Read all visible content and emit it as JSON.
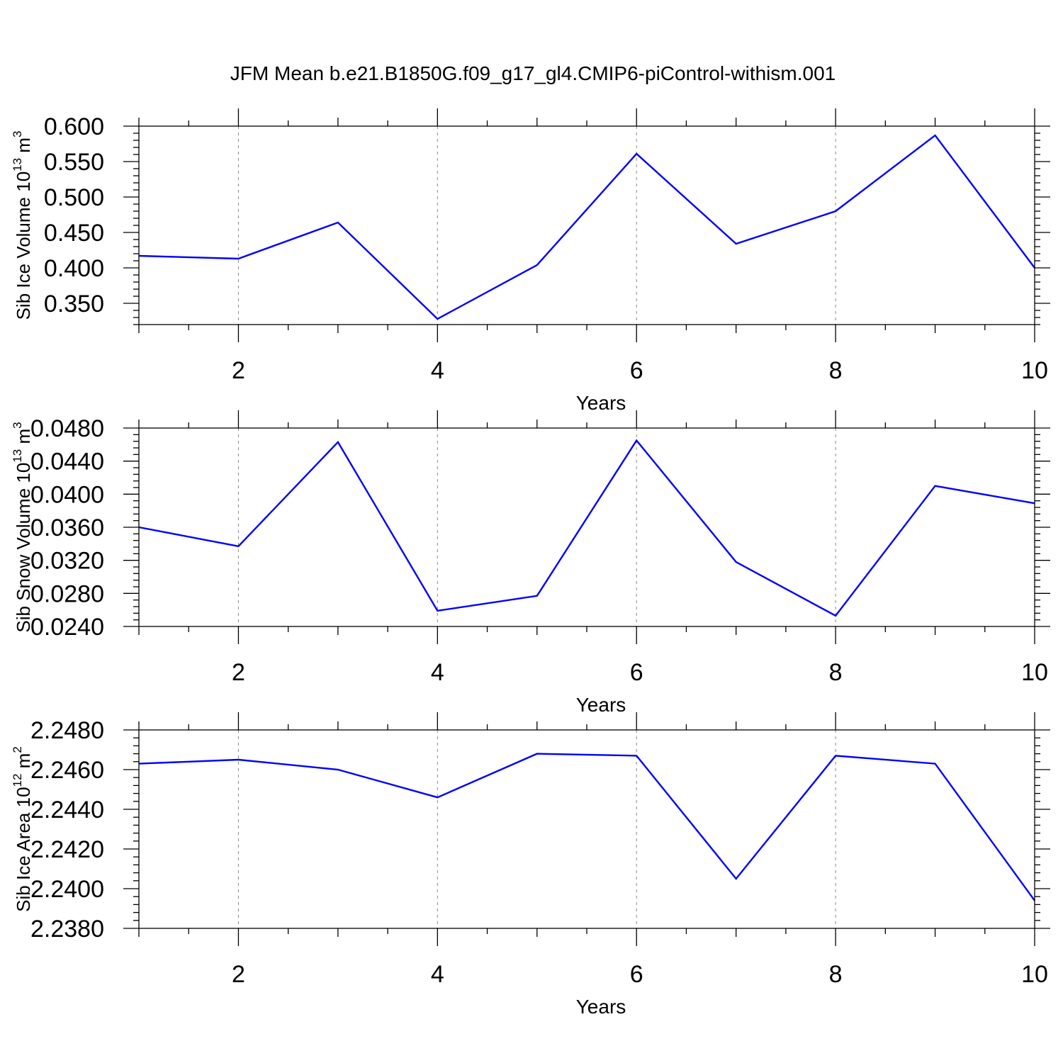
{
  "title": "JFM Mean b.e21.B1850G.f09_g17_gl4.CMIP6-piControl-withism.001",
  "colors": {
    "line": "#0000ff",
    "axis": "#000000",
    "grid": "#888888"
  },
  "chart_data": [
    {
      "type": "line",
      "xlabel": "Years",
      "ylabel": {
        "text": "Sib Ice Volume 10",
        "exp": "13",
        "unit": " m",
        "unit_exp": "3"
      },
      "xlim": [
        1,
        10
      ],
      "ylim": [
        0.32,
        0.6
      ],
      "xticks": [
        2,
        4,
        6,
        8,
        10
      ],
      "yticks": [
        0.35,
        0.4,
        0.45,
        0.5,
        0.55,
        0.6
      ],
      "ytick_labels": [
        "0.350",
        "0.400",
        "0.450",
        "0.500",
        "0.550",
        "0.600"
      ],
      "x": [
        1,
        2,
        3,
        4,
        5,
        6,
        7,
        8,
        9,
        10
      ],
      "values": [
        0.417,
        0.413,
        0.464,
        0.328,
        0.404,
        0.561,
        0.434,
        0.48,
        0.587,
        0.4
      ]
    },
    {
      "type": "line",
      "xlabel": "Years",
      "ylabel": {
        "text": "Sib Snow Volume 10",
        "exp": "13",
        "unit": " m",
        "unit_exp": "3"
      },
      "xlim": [
        1,
        10
      ],
      "ylim": [
        0.024,
        0.048
      ],
      "xticks": [
        2,
        4,
        6,
        8,
        10
      ],
      "yticks": [
        0.024,
        0.028,
        0.032,
        0.036,
        0.04,
        0.044,
        0.048
      ],
      "ytick_labels": [
        "0.0240",
        "0.0280",
        "0.0320",
        "0.0360",
        "0.0400",
        "0.0440",
        "0.0480"
      ],
      "x": [
        1,
        2,
        3,
        4,
        5,
        6,
        7,
        8,
        9,
        10
      ],
      "values": [
        0.036,
        0.0337,
        0.0463,
        0.0259,
        0.0277,
        0.0465,
        0.0318,
        0.0253,
        0.041,
        0.0389
      ]
    },
    {
      "type": "line",
      "xlabel": "Years",
      "ylabel": {
        "text": "Sib Ice Area 10",
        "exp": "12",
        "unit": " m",
        "unit_exp": "2"
      },
      "xlim": [
        1,
        10
      ],
      "ylim": [
        2.238,
        2.248
      ],
      "xticks": [
        2,
        4,
        6,
        8,
        10
      ],
      "yticks": [
        2.238,
        2.24,
        2.242,
        2.244,
        2.246,
        2.248
      ],
      "ytick_labels": [
        "2.2380",
        "2.2400",
        "2.2420",
        "2.2440",
        "2.2460",
        "2.2480"
      ],
      "x": [
        1,
        2,
        3,
        4,
        5,
        6,
        7,
        8,
        9,
        10
      ],
      "values": [
        2.2463,
        2.2465,
        2.246,
        2.2446,
        2.2468,
        2.2467,
        2.2405,
        2.2467,
        2.2463,
        2.2394
      ]
    }
  ]
}
